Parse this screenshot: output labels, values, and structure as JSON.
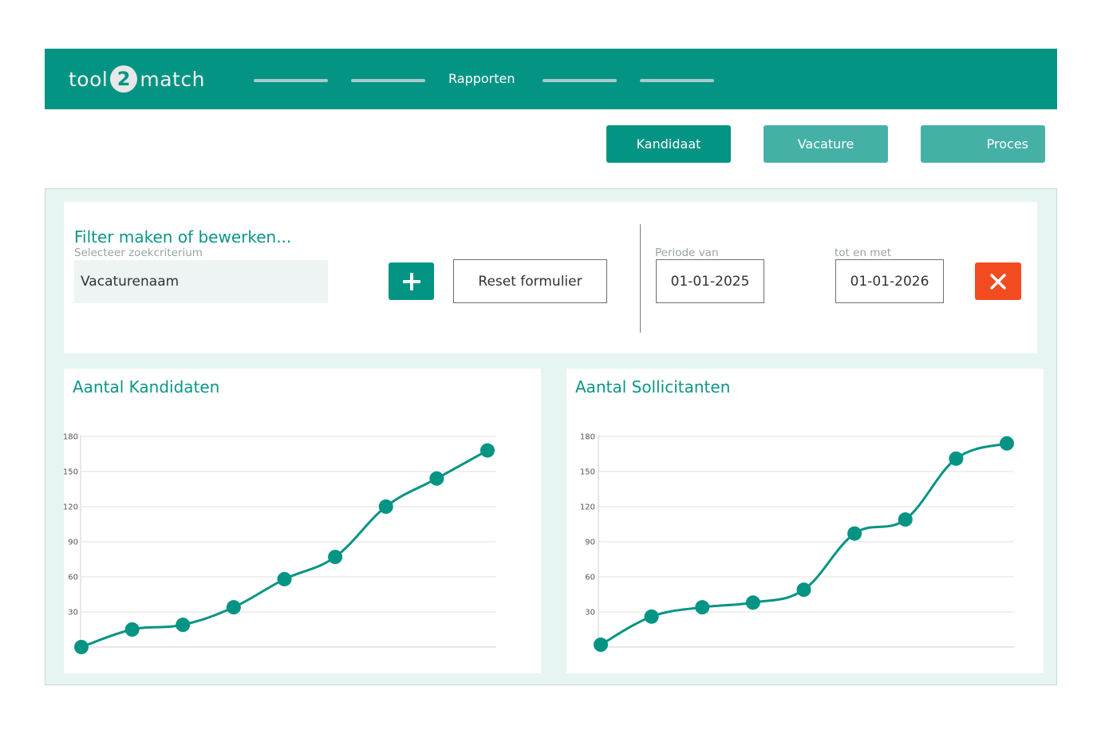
{
  "header": {
    "logo_left": "tool",
    "logo_mid": "2",
    "logo_right": "match",
    "nav_items": [
      {
        "label": "",
        "placeholder": true
      },
      {
        "label": "",
        "placeholder": true
      },
      {
        "label": "Rapporten",
        "placeholder": false
      },
      {
        "label": "",
        "placeholder": true
      },
      {
        "label": "",
        "placeholder": true
      }
    ]
  },
  "tabs": [
    {
      "label": "Kandidaat",
      "active": true
    },
    {
      "label": "Vacature",
      "active": false
    },
    {
      "label": "Proces",
      "active": false
    }
  ],
  "filter": {
    "title": "Filter maken of bewerken...",
    "criterion_label": "Selecteer zoekcriterium",
    "criterion_value": "Vacaturenaam",
    "add_icon": "plus-icon",
    "reset_label": "Reset formulier",
    "period_from_label": "Periode van",
    "period_from_value": "01-01-2025",
    "period_to_label": "tot en met",
    "period_to_value": "01-01-2026",
    "close_icon": "close-icon"
  },
  "colors": {
    "brand": "#039484",
    "brand_light": "#45b1a6",
    "danger": "#f14b1f"
  },
  "chart_data": [
    {
      "type": "line",
      "title": "Aantal Kandidaten",
      "x": [
        1,
        2,
        3,
        4,
        5,
        6,
        7,
        8,
        9
      ],
      "values": [
        0,
        15,
        19,
        34,
        58,
        77,
        120,
        144,
        168
      ],
      "ylim": [
        0,
        180
      ],
      "yticks": [
        30,
        60,
        90,
        120,
        150,
        180
      ],
      "grid": true,
      "legend": "none",
      "color": "#039484"
    },
    {
      "type": "line",
      "title": "Aantal Sollicitanten",
      "x": [
        1,
        2,
        3,
        4,
        5,
        6,
        7,
        8,
        9
      ],
      "values": [
        2,
        26,
        34,
        38,
        49,
        97,
        109,
        161,
        174
      ],
      "ylim": [
        0,
        180
      ],
      "yticks": [
        30,
        60,
        90,
        120,
        150,
        180
      ],
      "grid": true,
      "legend": "none",
      "color": "#039484"
    }
  ]
}
